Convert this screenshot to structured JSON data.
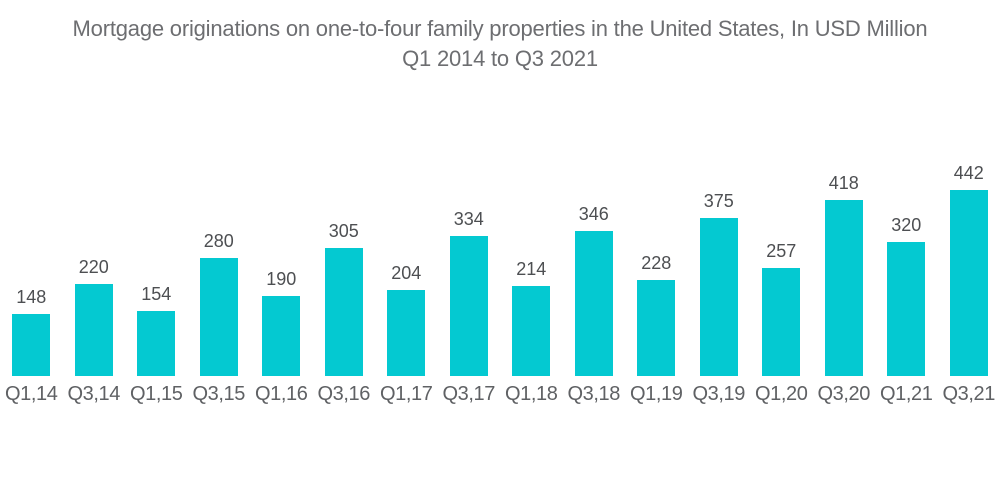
{
  "title": {
    "line1": "Mortgage originations on one-to-four family properties in the United States, In USD Million",
    "line2": "Q1 2014 to Q3 2021"
  },
  "chart_data": {
    "type": "bar",
    "title": "Mortgage originations on one-to-four family properties in the United States, In USD Million Q1 2014 to Q3 2021",
    "categories": [
      "Q1,14",
      "Q3,14",
      "Q1,15",
      "Q3,15",
      "Q1,16",
      "Q3,16",
      "Q1,17",
      "Q3,17",
      "Q1,18",
      "Q3,18",
      "Q1,19",
      "Q3,19",
      "Q1,20",
      "Q3,20",
      "Q1,21",
      "Q3,21"
    ],
    "values": [
      148,
      220,
      154,
      280,
      190,
      305,
      204,
      334,
      214,
      346,
      228,
      375,
      257,
      418,
      320,
      442
    ],
    "xlabel": "",
    "ylabel": "",
    "ylim": [
      0,
      460
    ],
    "grid": false,
    "legend": false,
    "data_labels": true,
    "bar_color": "#04C9D1"
  },
  "colors": {
    "background": "#FFFFFF",
    "bar": "#04C9D1",
    "title_text": "#6D6E71",
    "value_label_text": "#4D4F52",
    "axis_label_text": "#5F6164"
  }
}
